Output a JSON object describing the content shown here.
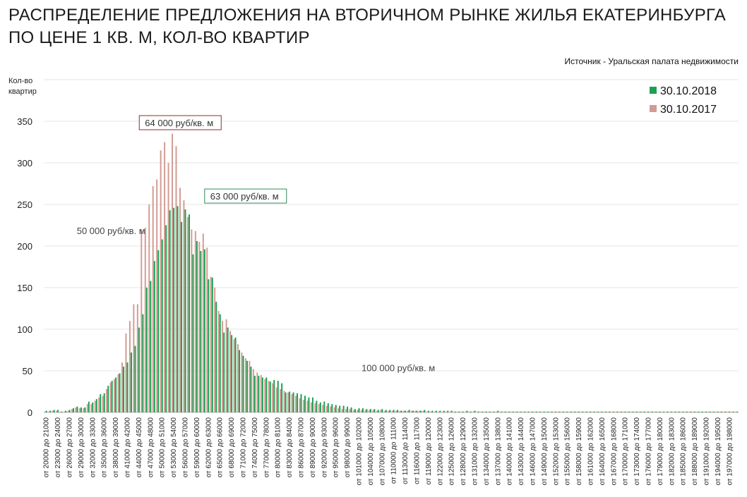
{
  "title": "РАСПРЕДЕЛЕНИЕ ПРЕДЛОЖЕНИЯ НА ВТОРИЧНОМ РЫНКЕ ЖИЛЬЯ ЕКАТЕРИНБУРГА ПО ЦЕНЕ 1 КВ. М, КОЛ-ВО КВАРТИР",
  "source": "Источник - Уральская палата недвижимости",
  "colors": {
    "series2018": "#1aa053",
    "series2017": "#d29b93",
    "box2017": "#8b2e2e",
    "box2018": "#2e8b57",
    "grid": "#e6e6e6"
  },
  "chart_data": {
    "type": "bar",
    "title": "РАСПРЕДЕЛЕНИЕ ПРЕДЛОЖЕНИЯ НА ВТОРИЧНОМ РЫНКЕ ЖИЛЬЯ ЕКАТЕРИНБУРГА ПО ЦЕНЕ 1 КВ. М, КОЛ-ВО КВАРТИР",
    "ylabel": "Кол-во\nквартир",
    "xlabel": "",
    "ylim": [
      0,
      350
    ],
    "yticks": [
      0,
      50,
      100,
      150,
      200,
      250,
      300,
      350
    ],
    "grid": true,
    "legend_position": "top-right",
    "x_start": 20000,
    "x_step": 1000,
    "label_every": 3,
    "category_template": "от {a} до {b}",
    "category_count": 180,
    "series": [
      {
        "name": "30.10.2018",
        "color": "#1aa053",
        "values": [
          2,
          2,
          3,
          3,
          1,
          2,
          3,
          5,
          7,
          6,
          6,
          13,
          12,
          16,
          22,
          23,
          32,
          38,
          42,
          47,
          55,
          60,
          72,
          80,
          102,
          118,
          150,
          158,
          182,
          195,
          208,
          225,
          243,
          246,
          248,
          229,
          244,
          238,
          190,
          206,
          194,
          196,
          160,
          162,
          133,
          118,
          96,
          102,
          93,
          90,
          75,
          68,
          62,
          55,
          44,
          44,
          42,
          42,
          37,
          39,
          38,
          35,
          24,
          25,
          24,
          23,
          22,
          20,
          18,
          18,
          14,
          12,
          13,
          11,
          10,
          9,
          8,
          8,
          7,
          6,
          4,
          5,
          5,
          4,
          4,
          4,
          3,
          4,
          3,
          3,
          3,
          3,
          2,
          2,
          3,
          2,
          2,
          2,
          3,
          2,
          2,
          2,
          2,
          2,
          2,
          2,
          1,
          1,
          1,
          2,
          1,
          2,
          1,
          1,
          1,
          1,
          1,
          2,
          1,
          1,
          1,
          1,
          1,
          1,
          1,
          1,
          1,
          1,
          1,
          1,
          1,
          1,
          1,
          1,
          1,
          1,
          1,
          1,
          1,
          1,
          1,
          1,
          1,
          1,
          1,
          1,
          1,
          1,
          1,
          1,
          1,
          1,
          1,
          1,
          1,
          1,
          1,
          1,
          1,
          1,
          1,
          1,
          1,
          1,
          1,
          1,
          1,
          1,
          1,
          1,
          1,
          1,
          1,
          1,
          1,
          1,
          1,
          1,
          1,
          1
        ]
      },
      {
        "name": "30.10.2017",
        "color": "#d29b93",
        "values": [
          1,
          1,
          2,
          2,
          1,
          1,
          2,
          4,
          6,
          5,
          5,
          10,
          10,
          14,
          18,
          20,
          28,
          36,
          40,
          46,
          60,
          95,
          110,
          130,
          130,
          220,
          222,
          250,
          272,
          280,
          315,
          325,
          300,
          335,
          320,
          270,
          255,
          235,
          220,
          218,
          205,
          215,
          198,
          163,
          150,
          122,
          110,
          112,
          98,
          88,
          82,
          72,
          65,
          62,
          52,
          48,
          45,
          40,
          38,
          35,
          30,
          28,
          26,
          24,
          22,
          20,
          17,
          15,
          14,
          12,
          11,
          10,
          9,
          8,
          7,
          6,
          5,
          4,
          4,
          4,
          3,
          3,
          3,
          3,
          3,
          3,
          2,
          3,
          2,
          2,
          2,
          2,
          2,
          2,
          2,
          2,
          2,
          2,
          2,
          1,
          1,
          1,
          1,
          1,
          1,
          1,
          1,
          1,
          1,
          1,
          1,
          1,
          1,
          1,
          1,
          1,
          1,
          1,
          1,
          1,
          1,
          1,
          1,
          1,
          1,
          1,
          1,
          1,
          1,
          1,
          1,
          1,
          1,
          1,
          1,
          1,
          1,
          1,
          1,
          1,
          1,
          1,
          1,
          1,
          1,
          1,
          1,
          1,
          1,
          1,
          1,
          1,
          1,
          1,
          1,
          1,
          1,
          1,
          1,
          1,
          1,
          1,
          1,
          1,
          1,
          1,
          1,
          1,
          1,
          1,
          1,
          1,
          1,
          1,
          1,
          1,
          1,
          1,
          1,
          1
        ]
      }
    ],
    "annotations": [
      {
        "text": "64 000 руб/кв. м",
        "style": "box-2017",
        "x": 64000,
        "y": 350
      },
      {
        "text": "63 000 руб/кв. м",
        "style": "box-2018",
        "x": 63000,
        "y": 255
      },
      {
        "text": "50 000 руб/кв. м",
        "style": "plain",
        "x": 50000,
        "y": 222
      },
      {
        "text": "100 000 руб/кв. м",
        "style": "plain",
        "x": 100000,
        "y": 48
      }
    ]
  }
}
